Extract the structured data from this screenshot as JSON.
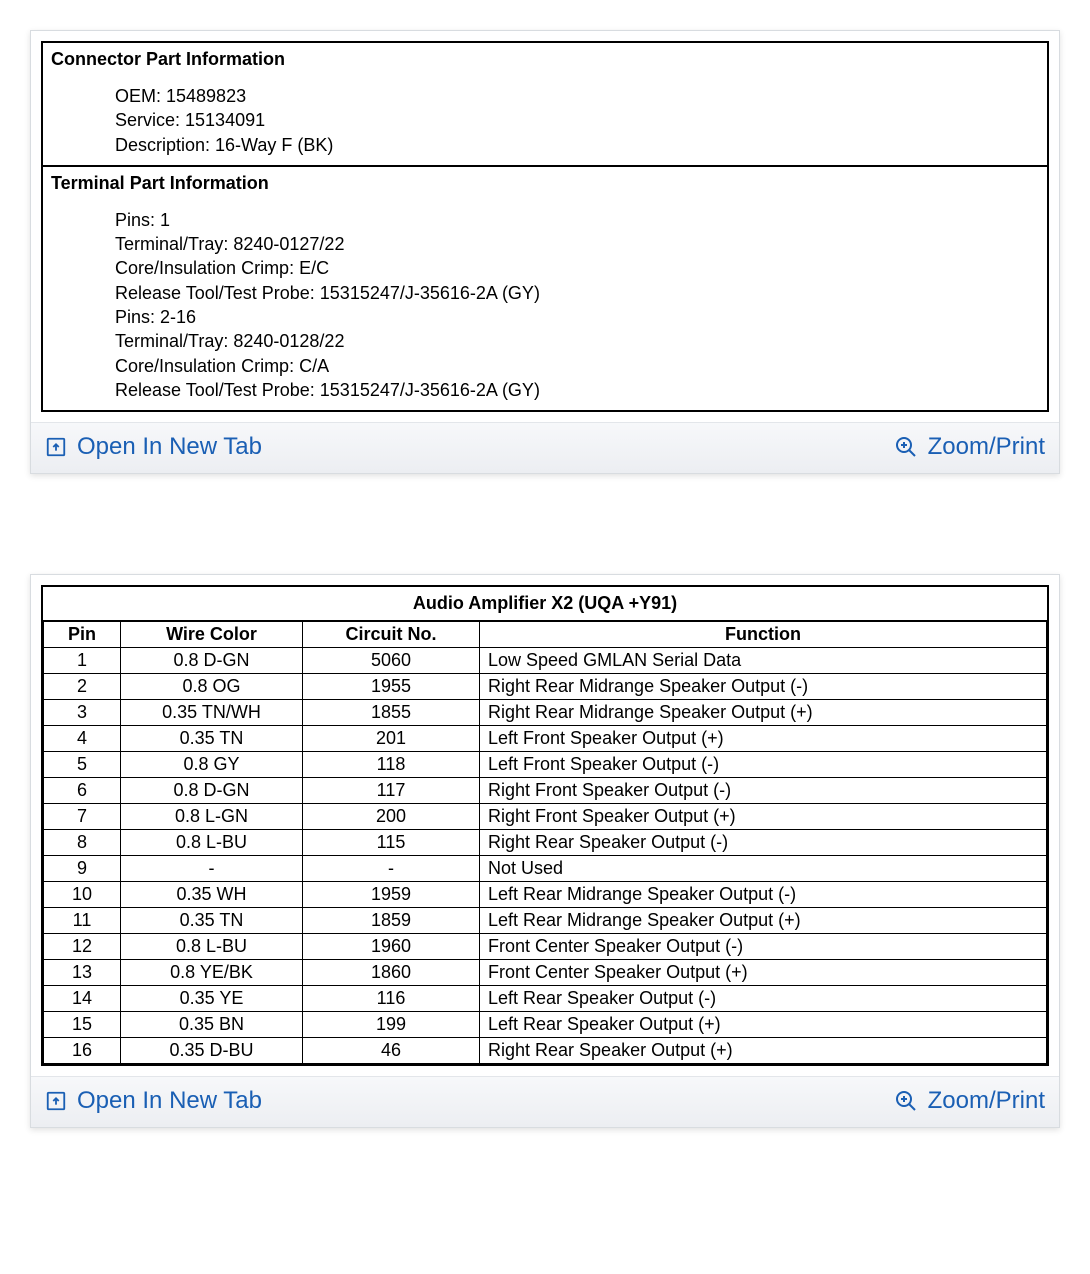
{
  "colors": {
    "link": "#1a5fb4",
    "border": "#000000",
    "panel_border": "#d8dce0"
  },
  "panel1": {
    "connector_header": "Connector Part Information",
    "connector_lines": [
      "OEM: 15489823",
      "Service: 15134091",
      "Description: 16-Way F (BK)"
    ],
    "terminal_header": "Terminal Part Information",
    "terminal_lines": [
      "Pins: 1",
      "Terminal/Tray: 8240-0127/22",
      "Core/Insulation Crimp: E/C",
      "Release Tool/Test Probe: 15315247/J-35616-2A (GY)",
      "Pins: 2-16",
      "Terminal/Tray: 8240-0128/22",
      "Core/Insulation Crimp: C/A",
      "Release Tool/Test Probe: 15315247/J-35616-2A (GY)"
    ]
  },
  "panel2": {
    "title": "Audio Amplifier X2 (UQA +Y91)",
    "columns": [
      "Pin",
      "Wire Color",
      "Circuit No.",
      "Function"
    ],
    "rows": [
      [
        "1",
        "0.8 D-GN",
        "5060",
        "Low Speed GMLAN Serial Data"
      ],
      [
        "2",
        "0.8 OG",
        "1955",
        "Right Rear Midrange Speaker Output (-)"
      ],
      [
        "3",
        "0.35 TN/WH",
        "1855",
        "Right Rear Midrange Speaker Output (+)"
      ],
      [
        "4",
        "0.35 TN",
        "201",
        "Left Front Speaker Output (+)"
      ],
      [
        "5",
        "0.8 GY",
        "118",
        "Left Front Speaker Output (-)"
      ],
      [
        "6",
        "0.8 D-GN",
        "117",
        "Right Front Speaker Output (-)"
      ],
      [
        "7",
        "0.8 L-GN",
        "200",
        "Right Front Speaker Output (+)"
      ],
      [
        "8",
        "0.8 L-BU",
        "115",
        "Right Rear Speaker Output (-)"
      ],
      [
        "9",
        "-",
        "-",
        "Not Used"
      ],
      [
        "10",
        "0.35 WH",
        "1959",
        "Left Rear Midrange Speaker Output (-)"
      ],
      [
        "11",
        "0.35 TN",
        "1859",
        "Left Rear Midrange Speaker Output (+)"
      ],
      [
        "12",
        "0.8 L-BU",
        "1960",
        "Front Center Speaker Output (-)"
      ],
      [
        "13",
        "0.8 YE/BK",
        "1860",
        "Front Center Speaker Output (+)"
      ],
      [
        "14",
        "0.35 YE",
        "116",
        "Left Rear Speaker Output (-)"
      ],
      [
        "15",
        "0.35 BN",
        "199",
        "Left Rear Speaker Output (+)"
      ],
      [
        "16",
        "0.35 D-BU",
        "46",
        "Right Rear Speaker Output (+)"
      ]
    ]
  },
  "actions": {
    "open_tab": "Open In New Tab",
    "zoom_print": "Zoom/Print"
  }
}
